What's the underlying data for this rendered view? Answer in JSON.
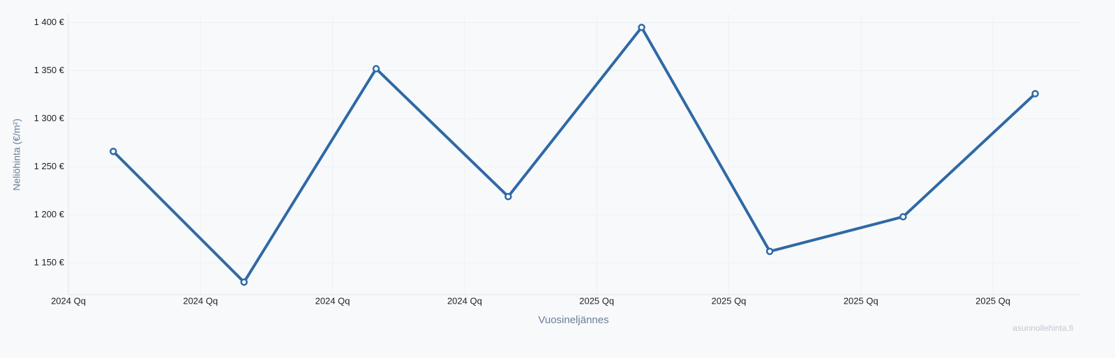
{
  "chart_data": {
    "type": "line",
    "y_label": "Neliöhinta (€/m²)",
    "x_label": "Vuosineljännes",
    "watermark": "asunnollehinta.fi",
    "x": [
      0.34,
      1.33,
      2.33,
      3.33,
      4.34,
      5.31,
      6.32,
      7.32
    ],
    "series": [
      {
        "color": "#2f69a5",
        "values": [
          1266,
          1130,
          1352,
          1219,
          1395,
          1162,
          1198,
          1326
        ]
      }
    ],
    "xlim": [
      0,
      7.66
    ],
    "xticks": [
      {
        "value": 0,
        "label": "2024 Qq"
      },
      {
        "value": 1,
        "label": "2024 Qq"
      },
      {
        "value": 2,
        "label": "2024 Qq"
      },
      {
        "value": 3,
        "label": "2024 Qq"
      },
      {
        "value": 4,
        "label": "2025 Qq"
      },
      {
        "value": 5,
        "label": "2025 Qq"
      },
      {
        "value": 6,
        "label": "2025 Qq"
      },
      {
        "value": 7,
        "label": "2025 Qq"
      }
    ],
    "ylim": [
      1117,
      1409
    ],
    "yticks": [
      {
        "value": 1150,
        "label": "1 150 €"
      },
      {
        "value": 1200,
        "label": "1 200 €"
      },
      {
        "value": 1250,
        "label": "1 250 €"
      },
      {
        "value": 1300,
        "label": "1 300 €"
      },
      {
        "value": 1350,
        "label": "1 350 €"
      },
      {
        "value": 1400,
        "label": "1 400 €"
      }
    ],
    "grid": true
  }
}
